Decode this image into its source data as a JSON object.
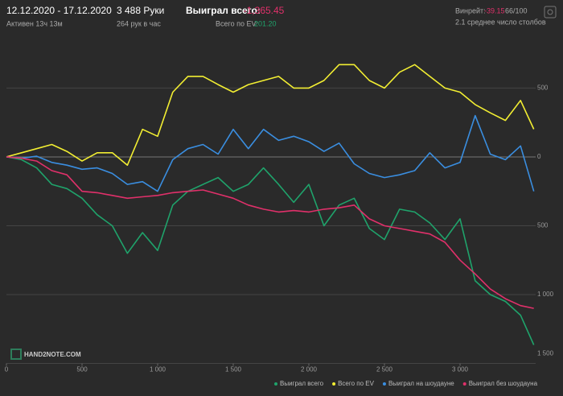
{
  "header": {
    "dates": "12.12.2020 - 17.12.2020",
    "active": "Активен 13ч 13м",
    "hands": "3 488 Руки",
    "rate": "264 рук в час",
    "won_label": "Выиграл всего:",
    "won_value": "-1,365.45",
    "ev_label": "Всего по EV:",
    "ev_value": "201.20",
    "winrate_label": "Винрейт:",
    "winrate_value": "-39.15",
    "winrate_unit": "66/100",
    "tables": "2.1 среднее число столбов",
    "logo": "HAND2NOTE.COM"
  },
  "chart_data": {
    "type": "line",
    "x": [
      0,
      100,
      200,
      300,
      400,
      500,
      600,
      700,
      800,
      900,
      1000,
      1100,
      1200,
      1300,
      1400,
      1500,
      1600,
      1700,
      1800,
      1900,
      2000,
      2100,
      2200,
      2300,
      2400,
      2500,
      2600,
      2700,
      2800,
      2900,
      3000,
      3100,
      3200,
      3300,
      3400,
      3488
    ],
    "xlim": [
      0,
      3500
    ],
    "xticks": [
      0,
      500,
      {
        "value": 1000,
        "label": "1 000"
      },
      {
        "value": 1500,
        "label": "1 500"
      },
      {
        "value": 2000,
        "label": "2 000"
      },
      {
        "value": 2500,
        "label": "2 500"
      },
      {
        "value": 3000,
        "label": "3 000"
      }
    ],
    "ylim": [
      -1500,
      900
    ],
    "yticks": [
      500,
      0,
      {
        "value": -500,
        "label": "500"
      },
      {
        "value": -1000,
        "label": "1 000"
      },
      {
        "value": -1500,
        "label": "1 500"
      }
    ],
    "grid": true,
    "series": [
      {
        "name": "Выиграл всего",
        "color": "#1fa36b",
        "values": [
          0,
          -20,
          -80,
          -200,
          -230,
          -300,
          -420,
          -500,
          -700,
          -550,
          -680,
          -350,
          -250,
          -200,
          -150,
          -250,
          -200,
          -80,
          -200,
          -330,
          -200,
          -500,
          -350,
          -300,
          -520,
          -600,
          -380,
          -400,
          -480,
          -600,
          -450,
          -900,
          -1000,
          -1050,
          -1150,
          -1365.45
        ]
      },
      {
        "name": "Всего по EV",
        "color": "#f2ee32",
        "values": [
          0,
          30,
          60,
          90,
          40,
          -30,
          30,
          30,
          -60,
          200,
          150,
          470,
          585,
          585,
          525,
          470,
          525,
          555,
          585,
          500,
          500,
          555,
          670,
          670,
          555,
          500,
          615,
          670,
          585,
          500,
          470,
          380,
          320,
          265,
          410,
          201.2
        ]
      },
      {
        "name": "Выиграл на шоудауне",
        "color": "#3a8ee0",
        "values": [
          0,
          -10,
          5,
          -40,
          -60,
          -90,
          -80,
          -120,
          -200,
          -180,
          -250,
          -20,
          60,
          90,
          20,
          200,
          60,
          200,
          120,
          150,
          110,
          40,
          100,
          -50,
          -120,
          -150,
          -130,
          -100,
          30,
          -80,
          -40,
          300,
          20,
          -20,
          80,
          -250
        ]
      },
      {
        "name": "Выиграл без шоудауна",
        "color": "#e0306a",
        "values": [
          0,
          -10,
          -30,
          -100,
          -130,
          -250,
          -260,
          -280,
          -300,
          -290,
          -280,
          -260,
          -250,
          -240,
          -270,
          -300,
          -350,
          -380,
          -400,
          -390,
          -400,
          -380,
          -370,
          -350,
          -450,
          -500,
          -520,
          -540,
          -560,
          -620,
          -750,
          -850,
          -960,
          -1030,
          -1080,
          -1100
        ]
      }
    ]
  }
}
